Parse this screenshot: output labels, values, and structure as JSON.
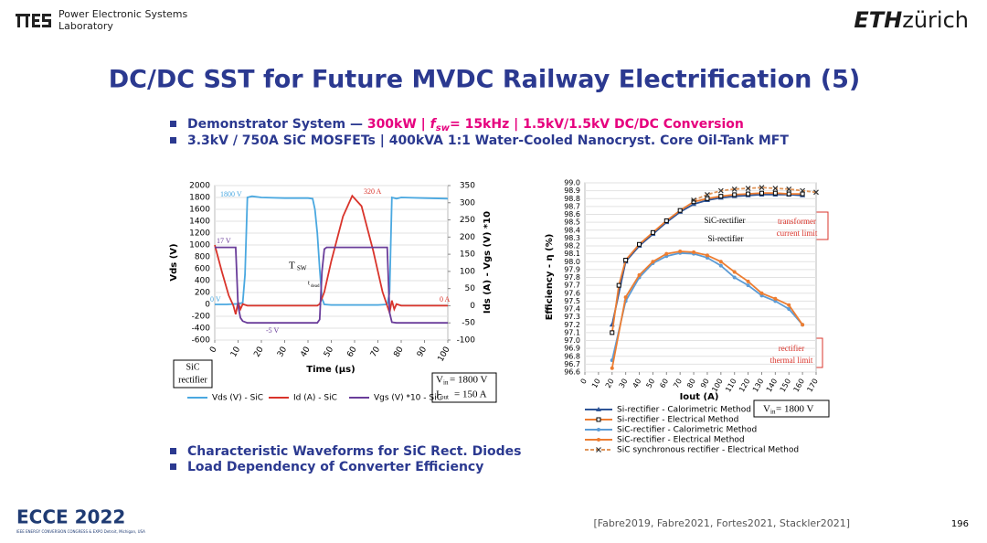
{
  "header": {
    "lab_line1": "Power Electronic Systems",
    "lab_line2": "Laboratory",
    "eth_bold": "ETH",
    "eth_light": "zürich"
  },
  "title": "DC/DC SST for Future MVDC Railway Electrification (5)",
  "bullets_top": [
    [
      "Demonstrator System  —  ",
      "300kW  | ",
      "f",
      "sw",
      "=  15kHz  | 1.5kV/1.5kV  DC/DC Conversion"
    ],
    [
      "3.3kV / 750A SiC MOSFETs   | 400kVA  1:1 Water-Cooled  Nanocryst. Core Oil-Tank MFT"
    ]
  ],
  "chart_data": [
    {
      "type": "line",
      "xlabel": "Time (µs)",
      "ylabel": "Vds (V)",
      "y2label": "Ids (A) - Vgs (V) *10",
      "grid": true,
      "xlim": [
        0,
        100
      ],
      "xticks": [
        0,
        10,
        20,
        30,
        40,
        50,
        60,
        70,
        80,
        90,
        100
      ],
      "ylim": [
        -600,
        2000
      ],
      "yticks": [
        -600,
        -400,
        -200,
        0,
        200,
        400,
        600,
        800,
        1000,
        1200,
        1400,
        1600,
        1800,
        2000
      ],
      "y2lim": [
        -100,
        350
      ],
      "y2ticks": [
        -100,
        -50,
        0,
        50,
        100,
        150,
        200,
        250,
        300,
        350
      ],
      "series": [
        {
          "name": "Vds (V) - SiC",
          "color": "#4aa8e0",
          "x": [
            0,
            5,
            10,
            12,
            13,
            14,
            16,
            20,
            30,
            40,
            42,
            43,
            44,
            45,
            46,
            47,
            50,
            60,
            70,
            74,
            75,
            76,
            78,
            80,
            90,
            100
          ],
          "values": [
            0,
            0,
            10,
            30,
            500,
            1800,
            1820,
            1800,
            1790,
            1790,
            1780,
            1600,
            1200,
            600,
            100,
            0,
            -10,
            -10,
            -10,
            0,
            200,
            1800,
            1780,
            1800,
            1790,
            1780
          ]
        },
        {
          "name": "Id (A) - SiC",
          "color": "#d9342b",
          "axis": "y2",
          "x": [
            0,
            3,
            6,
            8,
            9,
            10,
            11,
            12,
            14,
            20,
            30,
            40,
            44,
            45,
            47,
            50,
            55,
            59,
            63,
            68,
            72,
            74,
            75,
            76,
            77,
            78,
            80,
            90,
            100
          ],
          "values": [
            177,
            100,
            30,
            0,
            -25,
            10,
            -10,
            5,
            0,
            0,
            0,
            0,
            0,
            5,
            40,
            130,
            260,
            320,
            290,
            160,
            40,
            0,
            -20,
            15,
            -10,
            5,
            0,
            0,
            0
          ]
        },
        {
          "name": "Vgs (V) *10 - SiC",
          "color": "#6a3d9a",
          "axis": "y2",
          "x": [
            0,
            8,
            9,
            10,
            11,
            12,
            14,
            20,
            30,
            40,
            44,
            45,
            46,
            47,
            48,
            50,
            60,
            70,
            73,
            74,
            75,
            76,
            78,
            80,
            90,
            100
          ],
          "values": [
            170,
            170,
            170,
            0,
            -35,
            -45,
            -50,
            -50,
            -50,
            -50,
            -50,
            -40,
            100,
            165,
            170,
            170,
            170,
            170,
            170,
            170,
            -20,
            -48,
            -50,
            -50,
            -50,
            -50
          ]
        }
      ],
      "annotations": [
        "1800 V",
        "320 A",
        "17 V",
        "0 V",
        "0 A",
        "-5 V",
        "T",
        "SW",
        "t",
        "dead",
        "SiC",
        "rectifier",
        "V",
        "in",
        " = 1800 V",
        "I",
        "out",
        " = 150 A"
      ]
    },
    {
      "type": "line",
      "xlabel": "Iout (A)",
      "ylabel": "Efficiency - η (%)",
      "grid": true,
      "xlim": [
        0,
        170
      ],
      "xticks": [
        0,
        10,
        20,
        30,
        40,
        50,
        60,
        70,
        80,
        90,
        100,
        110,
        120,
        130,
        140,
        150,
        160,
        170
      ],
      "ylim": [
        96.6,
        99.0
      ],
      "yticks": [
        96.6,
        96.7,
        96.8,
        96.9,
        {
          "value": 97.0,
          "label": "97.0"
        },
        97.1,
        97.2,
        97.3,
        97.4,
        97.5,
        97.6,
        97.7,
        97.8,
        97.9,
        {
          "value": 98.0,
          "label": "98.0"
        },
        98.1,
        98.2,
        98.3,
        98.4,
        98.5,
        98.6,
        98.7,
        98.8,
        98.9,
        {
          "value": 99.0,
          "label": "99.0"
        }
      ],
      "series": [
        {
          "name": "Si-rectifier - Calorimetric Method",
          "color": "#2f5597",
          "marker": "triangle",
          "x": [
            20,
            30,
            40,
            50,
            60,
            70,
            80,
            90,
            100,
            110,
            120,
            130,
            140,
            150,
            160
          ],
          "values": [
            97.2,
            98.0,
            98.2,
            98.35,
            98.5,
            98.63,
            98.73,
            98.78,
            98.81,
            98.83,
            98.84,
            98.85,
            98.85,
            98.85,
            98.84
          ]
        },
        {
          "name": "Si-rectifier - Electrical Method",
          "color": "#ed7d31",
          "marker": "square",
          "x": [
            20,
            25,
            30,
            40,
            50,
            60,
            70,
            80,
            90,
            100,
            110,
            120,
            130,
            140,
            150,
            160
          ],
          "values": [
            97.1,
            97.7,
            98.02,
            98.22,
            98.37,
            98.52,
            98.65,
            98.76,
            98.8,
            98.83,
            98.85,
            98.86,
            98.87,
            98.87,
            98.86,
            98.86
          ]
        },
        {
          "name": "SiC-rectifier - Calorimetric Method",
          "color": "#5b9bd5",
          "marker": "circle",
          "x": [
            20,
            30,
            40,
            50,
            60,
            70,
            80,
            90,
            100,
            110,
            120,
            130,
            140,
            150,
            160
          ],
          "values": [
            96.75,
            97.5,
            97.8,
            97.98,
            98.07,
            98.11,
            98.1,
            98.05,
            97.95,
            97.8,
            97.7,
            97.57,
            97.5,
            97.4,
            97.2
          ]
        },
        {
          "name": "SiC-rectifier - Electrical Method",
          "color": "#ed7d31",
          "marker": "circle",
          "x": [
            20,
            30,
            40,
            50,
            60,
            70,
            80,
            90,
            100,
            110,
            120,
            130,
            140,
            150,
            160
          ],
          "values": [
            96.65,
            97.55,
            97.83,
            98.0,
            98.1,
            98.13,
            98.12,
            98.08,
            98.0,
            97.87,
            97.75,
            97.6,
            97.53,
            97.45,
            97.2
          ]
        },
        {
          "name": "SiC synchronous rectifier - Electrical Method",
          "color": "#e0955a",
          "marker": "cross",
          "dash": true,
          "x": [
            80,
            90,
            100,
            110,
            120,
            130,
            140,
            150,
            160,
            170
          ],
          "values": [
            98.78,
            98.85,
            98.9,
            98.92,
            98.93,
            98.94,
            98.93,
            98.92,
            98.9,
            98.88
          ]
        }
      ],
      "annotations": [
        "SiC-rectifier",
        "Si-rectifier",
        "transformer",
        "current limit",
        "rectifier",
        "thermal limit",
        "V",
        "in",
        " = 1800 V"
      ]
    }
  ],
  "bullets_bottom": [
    "Characteristic Waveforms for SiC Rect. Diodes",
    "Load Dependency of Converter Efficiency"
  ],
  "footer": {
    "conf": "ECCE 2022",
    "conf_sub": "IEEE ENERGY CONVERSION CONGRESS & EXPO  Detroit, Michigan, USA",
    "refs": "[Fabre2019, Fabre2021, Fortes2021, Stackler2021]",
    "page": "196"
  }
}
